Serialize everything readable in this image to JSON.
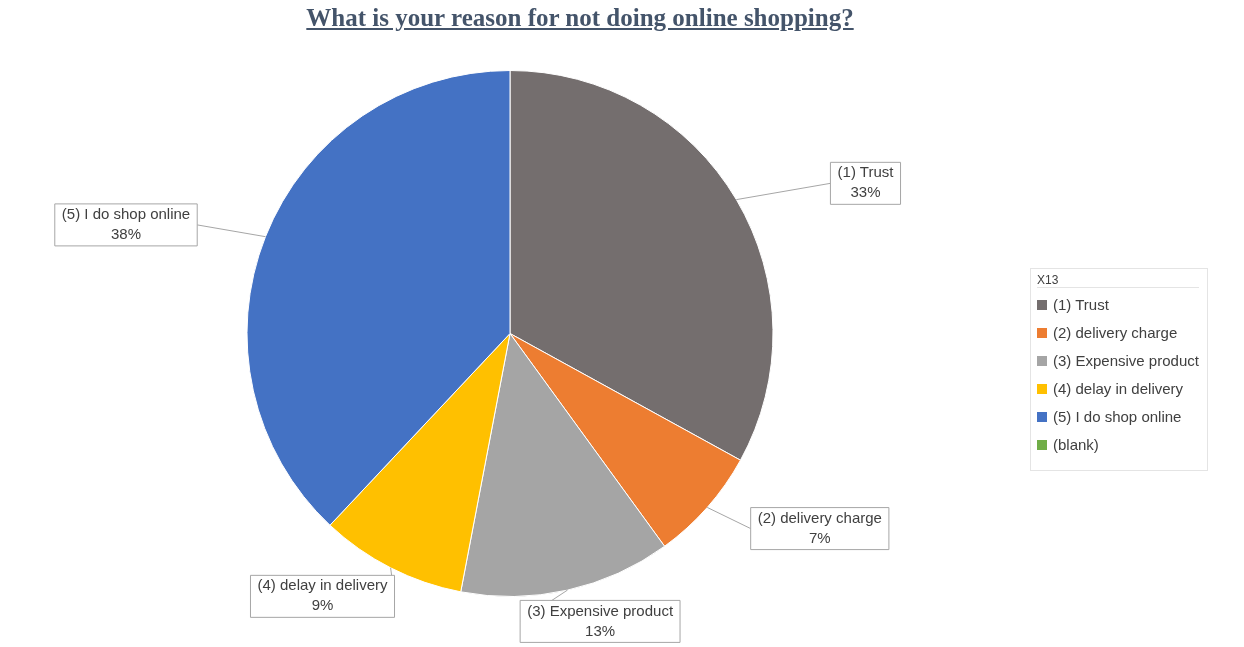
{
  "chart_data": {
    "type": "pie",
    "title": "What is your reason for not doing online shopping?",
    "legend_title": "X13",
    "legend": "right",
    "categories": [
      "(1) Trust",
      "(2) delivery charge",
      "(3) Expensive product",
      "(4) delay in delivery",
      "(5) I do shop online",
      "(blank)"
    ],
    "values": [
      33,
      7,
      13,
      9,
      38,
      0
    ],
    "value_labels": [
      "33%",
      "7%",
      "13%",
      "9%",
      "38%",
      null
    ],
    "colors": [
      "#746e6e",
      "#ed7d31",
      "#a5a5a5",
      "#ffc000",
      "#4472c4",
      "#70ad47"
    ]
  }
}
